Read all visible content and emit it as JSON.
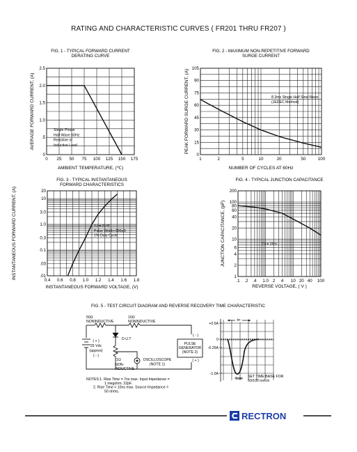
{
  "title": "RATING AND CHARACTERISTIC CURVES ( FR201 THRU FR207 )",
  "fig1": {
    "title_lines": [
      "FIG. 1 - TYPICAL FORWARD CURRENT",
      "DERATING CURVE"
    ],
    "ylabel": "AVERAGE FORWARD CURRENT, (A)",
    "xlabel": "AMBIENT TEMPERATURE, (℃)",
    "yticks": [
      "2.5",
      "2.0",
      "1.5",
      "1.0",
      ".5",
      "0"
    ],
    "xticks": [
      "0",
      "25",
      "50",
      "75",
      "100",
      "125",
      "150",
      "175"
    ],
    "notes": [
      "Single Phase",
      "Half Wave 60Hz",
      "Resistive or",
      "Inductive Load"
    ]
  },
  "fig2": {
    "title_lines": [
      "FIG. 2 - MAXIMUM NON-REPETITIVE FORWARD",
      "SURGE CURRENT"
    ],
    "ylabel": "PEAK FORWARD SURGE CURRENT, (A)",
    "xlabel": "NUMBER OF CYCLES AT 60Hz",
    "yticks": [
      "105",
      "90",
      "75",
      "60",
      "45",
      "30",
      "15",
      "0"
    ],
    "xticks": [
      "1",
      "2",
      "5",
      "10",
      "20",
      "50",
      "100"
    ],
    "notes": [
      "8.3ms Single Half Sine-Wave",
      "(JEDEC Method)"
    ]
  },
  "fig3": {
    "title_lines": [
      "FIG. 3 - TYPICAL INSTANTANEOUS",
      "FORWARD CHARACTERISTICS"
    ],
    "ylabel": "INSTANTANEOUS FORWARD CURRENT, (A)",
    "xlabel": "INSTANTANEOUS FORWARD VOLTAGE, (V)",
    "yticks": [
      "20",
      "10",
      "3.0",
      "1.0",
      "0.3",
      "0.1",
      ".03",
      ".01"
    ],
    "xticks": [
      "0.4",
      "0.6",
      "0.8",
      "1.0",
      "1.2",
      "1.4",
      "1.6",
      "1.8"
    ],
    "notes": [
      "TJ = 25℃",
      "Pulse Width=300uS",
      "1% Duty Cycle"
    ]
  },
  "fig4": {
    "title_lines": [
      "FIG. 4 - TYPICAL JUNCTION CAPACITANCE"
    ],
    "ylabel": "JUNCTION CAPACITANCE, (pF)",
    "xlabel": "REVERSE VOLTAGE, ( V )",
    "yticks": [
      "200",
      "100",
      "80",
      "60",
      "40",
      "20",
      "10",
      "6",
      "4",
      "2",
      "1"
    ],
    "xticks": [
      ".1",
      ".2",
      ".4",
      "1.0",
      "2",
      "4",
      "10",
      "20",
      "40",
      "100"
    ],
    "notes": [
      "TJ = 25℃"
    ]
  },
  "fig5": {
    "title": "FIG. 5 - TEST CIRCUIT DIAGRAM AND REVERSE RECOVERY TIME CHARACTERISTIC",
    "r1_value": "50Ω",
    "r1_type": "NONINDUCTIVE",
    "r2_value": "10Ω",
    "r2_type": "NONINDUCTIVE",
    "dut": "D.U.T",
    "supply_lines": [
      "( + )",
      "25 Vdc",
      "(approx)",
      "( - )"
    ],
    "r3_value": "1Ω",
    "r3_type": [
      "NON-",
      "INDUCTIVE"
    ],
    "scope_lines": [
      "OSCILLOSCOPE",
      "(NOTE 1)"
    ],
    "pulse_lines": [
      "PULSE",
      "GENERATOR",
      "(NOTE 2)"
    ],
    "pulse_minus": "( - )",
    "pulse_plus": "( + )",
    "notes": [
      "NOTES:1. Rise Time = 7ns max. Input Impedance =",
      "1 megohm. 22pF.",
      "2. Rise Time = 10ns max. Source Impedance =",
      "50 ohms."
    ],
    "wave_levels": [
      "+0.5A",
      "0",
      "-0.25A",
      "-1.0A"
    ],
    "trr_label": "trr",
    "cm_label": "1cm",
    "timebase_lines": [
      "SET TIME BASE FOR",
      "50/100 ns/cm"
    ]
  },
  "brand": "RECTRON",
  "chart_data": [
    {
      "type": "line",
      "title": "FIG. 1 - TYPICAL FORWARD CURRENT DERATING CURVE",
      "xlabel": "AMBIENT TEMPERATURE, (℃)",
      "ylabel": "AVERAGE FORWARD CURRENT, (A)",
      "xlim": [
        0,
        175
      ],
      "ylim": [
        0,
        2.5
      ],
      "x": [
        0,
        75,
        150
      ],
      "series": [
        {
          "values": [
            2.0,
            2.0,
            0
          ]
        }
      ]
    },
    {
      "type": "line",
      "title": "FIG. 2 - MAXIMUM NON-REPETITIVE FORWARD SURGE CURRENT",
      "xlabel": "NUMBER OF CYCLES AT 60Hz",
      "ylabel": "PEAK FORWARD SURGE CURRENT, (A)",
      "xscale": "log",
      "xlim": [
        1,
        100
      ],
      "ylim": [
        0,
        105
      ],
      "x": [
        1,
        2,
        5,
        10,
        20,
        50,
        100
      ],
      "series": [
        {
          "values": [
            67,
            55,
            40,
            30,
            22,
            14,
            9
          ]
        }
      ]
    },
    {
      "type": "line",
      "title": "FIG. 3 - TYPICAL INSTANTANEOUS FORWARD CHARACTERISTICS",
      "xlabel": "INSTANTANEOUS FORWARD VOLTAGE, (V)",
      "ylabel": "INSTANTANEOUS FORWARD CURRENT, (A)",
      "yscale": "log",
      "xlim": [
        0.4,
        1.8
      ],
      "ylim": [
        0.01,
        20
      ],
      "x": [
        0.72,
        0.8,
        0.9,
        1.0,
        1.1,
        1.2,
        1.3,
        1.4,
        1.5
      ],
      "series": [
        {
          "values": [
            0.01,
            0.03,
            0.1,
            0.3,
            1.0,
            2.5,
            5,
            9,
            15
          ]
        }
      ]
    },
    {
      "type": "line",
      "title": "FIG. 4 - TYPICAL JUNCTION CAPACITANCE",
      "xlabel": "REVERSE VOLTAGE, ( V )",
      "ylabel": "JUNCTION CAPACITANCE, (pF)",
      "xscale": "log",
      "yscale": "log",
      "xlim": [
        0.1,
        100
      ],
      "ylim": [
        1,
        200
      ],
      "x": [
        0.1,
        0.4,
        1,
        4,
        10,
        40,
        100
      ],
      "series": [
        {
          "values": [
            80,
            73,
            65,
            50,
            35,
            20,
            13
          ]
        }
      ]
    }
  ]
}
